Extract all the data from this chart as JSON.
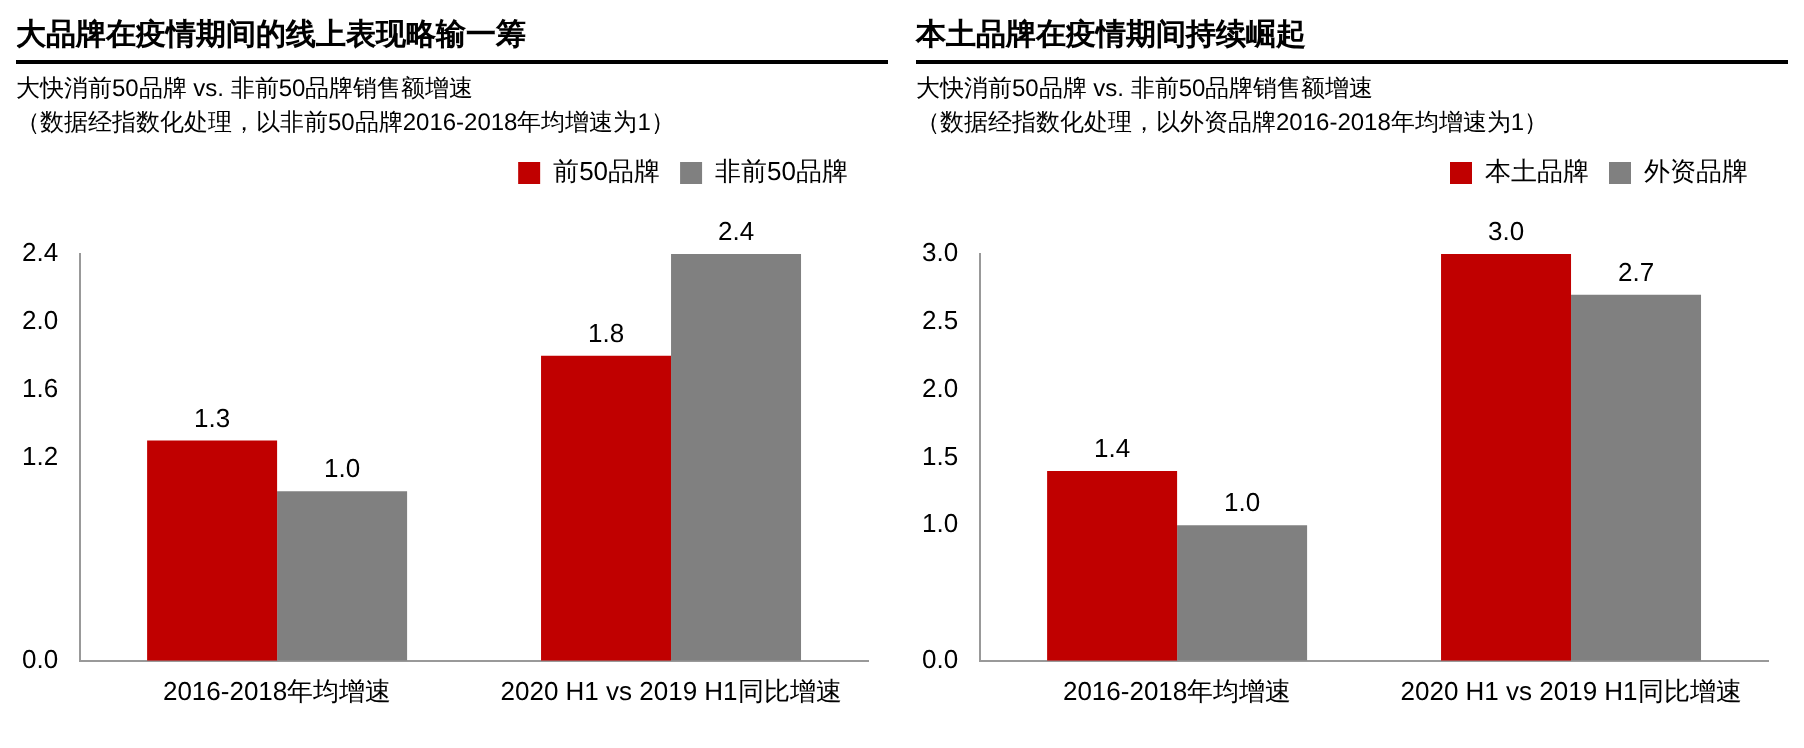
{
  "chart_data": [
    {
      "type": "bar",
      "title": "大品牌在疫情期间的线上表现略输一筹",
      "subtitle": "大快消前50品牌 vs. 非前50品牌销售额增速",
      "annotations": [
        "（数据经指数化处理，以非前50品牌2016-2018年均增速为1）"
      ],
      "categories": [
        "2016-2018年均增速",
        "2020 H1 vs 2019 H1同比增速"
      ],
      "series": [
        {
          "name": "前50品牌",
          "color": "#c00000",
          "values": [
            1.3,
            1.8
          ],
          "value_labels": [
            "1.3",
            "1.8"
          ]
        },
        {
          "name": "非前50品牌",
          "color": "#808080",
          "values": [
            1.0,
            2.4
          ],
          "value_labels": [
            "1.0",
            "2.4"
          ]
        }
      ],
      "ylim": [
        0,
        2.4
      ],
      "yticks": [
        {
          "value": 0,
          "label": "0.0"
        },
        1.2,
        1.6,
        {
          "value": 2,
          "label": "2.0"
        },
        2.4
      ],
      "legend": "top right",
      "grid": false
    },
    {
      "type": "bar",
      "title": "本土品牌在疫情期间持续崛起",
      "subtitle": "大快消前50品牌 vs. 非前50品牌销售额增速",
      "annotations": [
        "（数据经指数化处理，以外资品牌2016-2018年均增速为1）"
      ],
      "categories": [
        "2016-2018年均增速",
        "2020 H1 vs 2019 H1同比增速"
      ],
      "series": [
        {
          "name": "本土品牌",
          "color": "#c00000",
          "values": [
            1.4,
            3.0
          ],
          "value_labels": [
            "1.4",
            "3.0"
          ]
        },
        {
          "name": "外资品牌",
          "color": "#808080",
          "values": [
            1.0,
            2.7
          ],
          "value_labels": [
            "1.0",
            "2.7"
          ]
        }
      ],
      "ylim": [
        0,
        3.0
      ],
      "yticks": [
        {
          "value": 0,
          "label": "0.0"
        },
        {
          "value": 1,
          "label": "1.0"
        },
        1.5,
        {
          "value": 2,
          "label": "2.0"
        },
        2.5,
        {
          "value": 3,
          "label": "3.0"
        }
      ],
      "legend": "top right",
      "grid": false
    }
  ]
}
